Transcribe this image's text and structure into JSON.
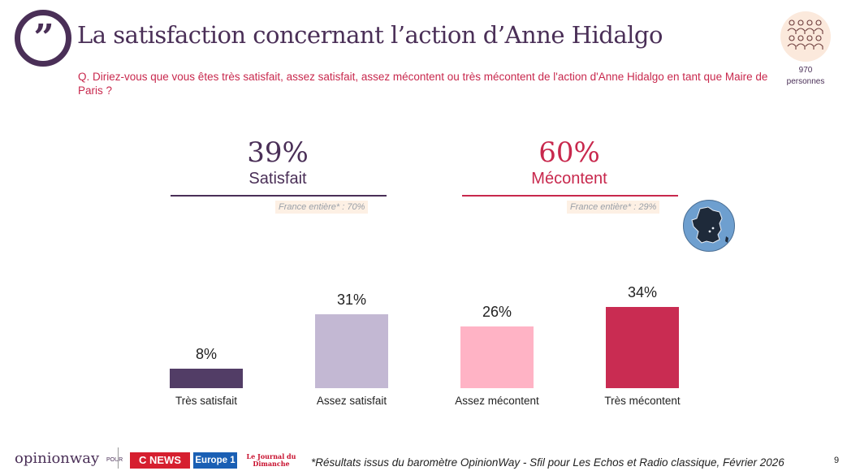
{
  "header": {
    "title": "La satisfaction concernant l’action d’Anne Hidalgo",
    "question": "Q. Diriez-vous que vous êtes très satisfait, assez satisfait, assez mécontent ou très mécontent de l'action d'Anne Hidalgo en tant que Maire de Paris ?",
    "quote_icon": "quote-icon"
  },
  "sample": {
    "count": "970",
    "unit": "personnes",
    "icon": "people-icon"
  },
  "summary": [
    {
      "pct": "39%",
      "label": "Satisfait",
      "france": "France entière* : 70%",
      "color": "#4a2f57"
    },
    {
      "pct": "60%",
      "label": "Mécontent",
      "france": "France entière* : 29%",
      "color": "#c8284d"
    }
  ],
  "map_icon": "france-map-icon",
  "chart_data": {
    "type": "bar",
    "categories": [
      "Très satisfait",
      "Assez satisfait",
      "Assez mécontent",
      "Très mécontent"
    ],
    "values": [
      8,
      31,
      26,
      34
    ],
    "value_labels": [
      "8%",
      "31%",
      "26%",
      "34%"
    ],
    "colors": [
      "#523d66",
      "#c3b8d3",
      "#ffb3c5",
      "#c92c52"
    ],
    "ylim": [
      0,
      34
    ]
  },
  "footer": {
    "brand": "opinionway",
    "pour": "POUR",
    "logos": [
      "C NEWS",
      "Europe 1",
      "Le Journal du Dimanche"
    ],
    "footnote": "*Résultats issus du baromètre OpinionWay - Sfil pour Les Echos et Radio classique, Février 2026",
    "page": "9"
  }
}
